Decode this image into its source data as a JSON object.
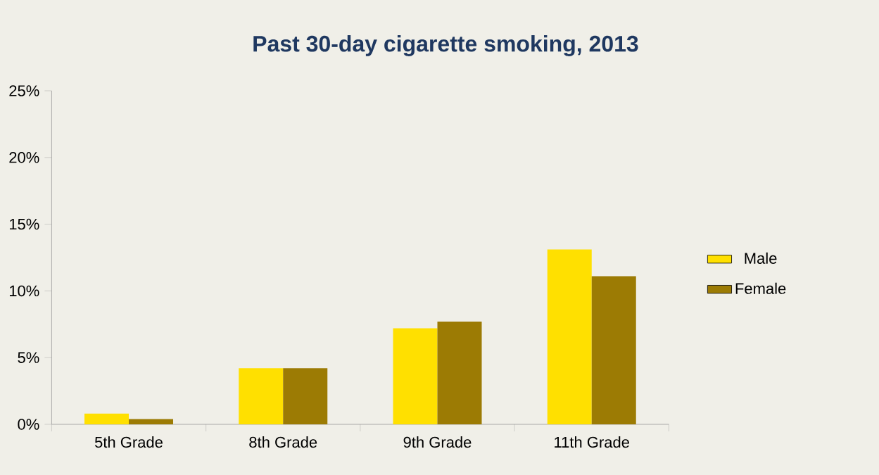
{
  "chart_data": {
    "type": "bar",
    "title": "Past 30-day cigarette smoking, 2013",
    "categories": [
      "5th Grade",
      "8th Grade",
      "9th Grade",
      "11th Grade"
    ],
    "series": [
      {
        "name": "Male",
        "color": "#ffe000",
        "values": [
          0.8,
          4.2,
          7.2,
          13.1
        ]
      },
      {
        "name": "Female",
        "color": "#9c7b04",
        "values": [
          0.4,
          4.2,
          7.7,
          11.1
        ]
      }
    ],
    "ylim": [
      0,
      25
    ],
    "yticks": [
      {
        "value": 0,
        "label": "0%"
      },
      {
        "value": 5,
        "label": "5%"
      },
      {
        "value": 10,
        "label": "10%"
      },
      {
        "value": 15,
        "label": "15%"
      },
      {
        "value": 20,
        "label": "20%"
      },
      {
        "value": 25,
        "label": "25%"
      }
    ],
    "legend": "right"
  }
}
